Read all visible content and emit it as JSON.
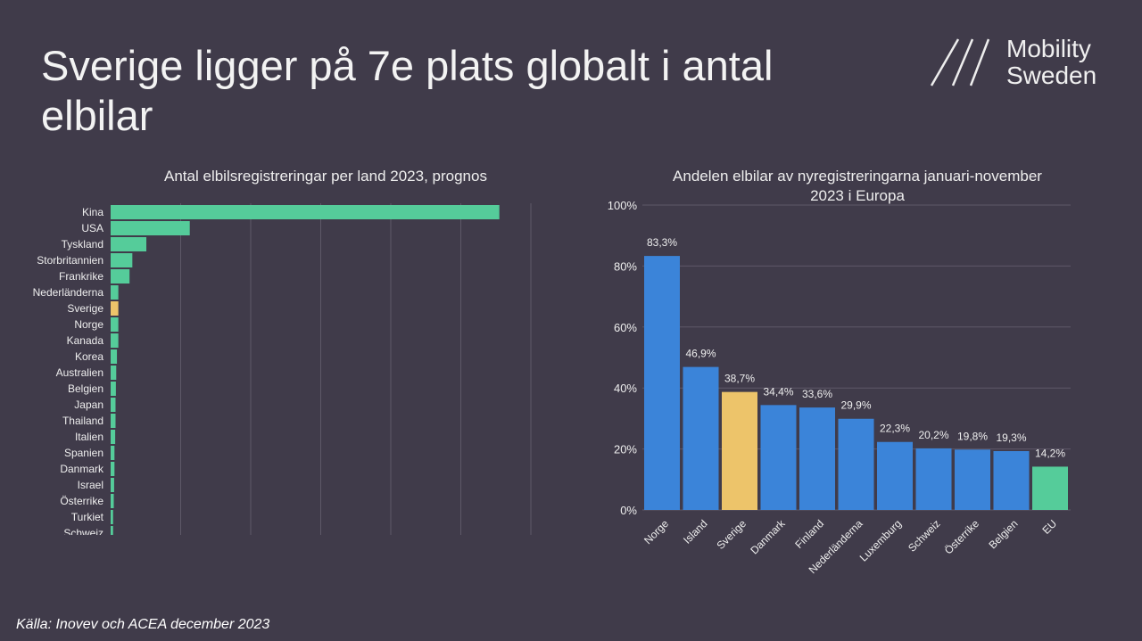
{
  "title": "Sverige ligger på 7e plats globalt i antal elbilar",
  "logo": {
    "line1": "Mobility",
    "line2": "Sweden"
  },
  "source": "Källa: Inovev och ACEA  december 2023",
  "colors": {
    "background": "#403b4a",
    "green": "#55cc9a",
    "yellow": "#edc46a",
    "blue": "#3b84d9"
  },
  "chart_data": [
    {
      "type": "bar",
      "orientation": "horizontal",
      "title": "Antal elbilsregistreringar per land 2023, prognos",
      "categories": [
        "Kina",
        "USA",
        "Tyskland",
        "Storbritannien",
        "Frankrike",
        "Nederländerna",
        "Sverige",
        "Norge",
        "Kanada",
        "Korea",
        "Australien",
        "Belgien",
        "Japan",
        "Thailand",
        "Italien",
        "Spanien",
        "Danmark",
        "Israel",
        "Österrike",
        "Turkiet",
        "Schweiz"
      ],
      "values": [
        5550000,
        1130000,
        510000,
        310000,
        270000,
        110000,
        110000,
        110000,
        110000,
        90000,
        80000,
        75000,
        70000,
        70000,
        65000,
        55000,
        55000,
        50000,
        45000,
        35000,
        35000
      ],
      "highlight": "Sverige",
      "xlim": [
        0,
        6000000
      ],
      "xticks": [
        "0",
        "1,000,000",
        "2,000,000",
        "3,000,000",
        "4,000,000",
        "5,000,000",
        "6,000,000"
      ],
      "grid": true
    },
    {
      "type": "bar",
      "title": "Andelen elbilar av nyregistreringarna januari-november 2023 i Europa",
      "categories": [
        "Norge",
        "Island",
        "Sverige",
        "Danmark",
        "Finland",
        "Nederländerna",
        "Luxemburg",
        "Schweiz",
        "Österrike",
        "Belgien",
        "EU"
      ],
      "values": [
        83.3,
        46.9,
        38.7,
        34.4,
        33.6,
        29.9,
        22.3,
        20.2,
        19.8,
        19.3,
        14.2
      ],
      "labels": [
        "83,3%",
        "46,9%",
        "38,7%",
        "34,4%",
        "33,6%",
        "29,9%",
        "22,3%",
        "20,2%",
        "19,8%",
        "19,3%",
        "14,2%"
      ],
      "bar_colors": [
        "blue",
        "blue",
        "yellow",
        "blue",
        "blue",
        "blue",
        "blue",
        "blue",
        "blue",
        "blue",
        "green"
      ],
      "ylim": [
        0,
        100
      ],
      "yticks": [
        "0%",
        "20%",
        "40%",
        "60%",
        "80%",
        "100%"
      ],
      "grid": true
    }
  ]
}
